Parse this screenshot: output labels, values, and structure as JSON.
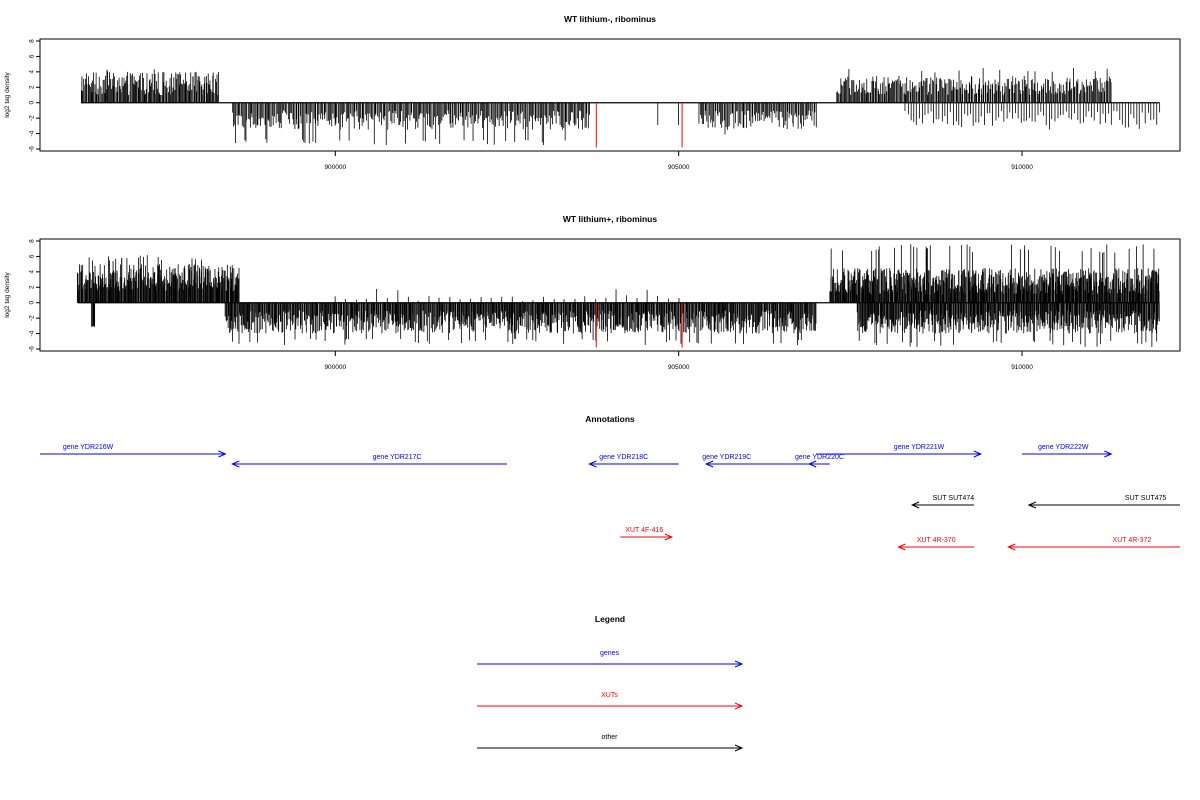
{
  "chart_data": [
    {
      "type": "bar",
      "title": "WT lithium-, ribominus",
      "ylabel": "log2 tag density",
      "xlabel": "",
      "ylim": [
        -6,
        8
      ],
      "yticks": [
        8,
        6,
        4,
        2,
        0,
        -2,
        -4,
        -6
      ],
      "xticks": [
        900000,
        905000,
        910000
      ],
      "xtick_labels": [
        "900000",
        "905000",
        "910000"
      ],
      "xrange": [
        895700,
        912300
      ],
      "colors": {
        "signal": "#000000",
        "marker": "#ff0000"
      },
      "segments": [
        {
          "strand": "+",
          "start": 896300,
          "end": 898300,
          "typical": [
            1,
            4
          ],
          "max": 4.6,
          "density": 0.6
        },
        {
          "strand": "-",
          "start": 898500,
          "end": 903700,
          "typical": [
            -1,
            -3.5
          ],
          "min": -5.5,
          "density": 0.45
        },
        {
          "strand": "-",
          "start": 904700,
          "end": 905000,
          "typical": [
            -2,
            -3
          ],
          "min": -3,
          "density": 0.05
        },
        {
          "strand": "-",
          "start": 905300,
          "end": 907000,
          "typical": [
            -1,
            -3.5
          ],
          "min": -4.5,
          "density": 0.45
        },
        {
          "strand": "+",
          "start": 907300,
          "end": 911300,
          "typical": [
            1,
            3.5
          ],
          "max": 4.5,
          "density": 0.5
        },
        {
          "strand": "-",
          "start": 908300,
          "end": 912000,
          "typical": [
            -1,
            -3
          ],
          "min": -3.5,
          "density": 0.18
        }
      ],
      "markers": [
        {
          "x": 903800,
          "y": -5.8
        },
        {
          "x": 905050,
          "y": -5.8
        }
      ]
    },
    {
      "type": "bar",
      "title": "WT lithium+, ribominus",
      "ylabel": "log2 tag density",
      "xlabel": "",
      "ylim": [
        -6,
        8
      ],
      "yticks": [
        8,
        6,
        4,
        2,
        0,
        -2,
        -4,
        -6
      ],
      "xticks": [
        900000,
        905000,
        910000
      ],
      "xtick_labels": [
        "900000",
        "905000",
        "910000"
      ],
      "xrange": [
        895700,
        912300
      ],
      "colors": {
        "signal": "#000000",
        "marker": "#ff0000"
      },
      "segments": [
        {
          "strand": "+",
          "start": 896250,
          "end": 898600,
          "typical": [
            1.5,
            5
          ],
          "max": 6.2,
          "density": 0.95
        },
        {
          "strand": "-",
          "start": 898400,
          "end": 907000,
          "typical": [
            -1,
            -4
          ],
          "min": -5.5,
          "density": 0.75
        },
        {
          "strand": "+",
          "start": 900000,
          "end": 905000,
          "typical": [
            0.2,
            1
          ],
          "max": 1.8,
          "density": 0.05
        },
        {
          "strand": "+",
          "start": 907200,
          "end": 912000,
          "typical": [
            1,
            4.5
          ],
          "max": 7.6,
          "density": 0.95
        },
        {
          "strand": "-",
          "start": 907600,
          "end": 912000,
          "typical": [
            -1,
            -4
          ],
          "min": -5.8,
          "density": 0.8
        },
        {
          "strand": "-",
          "start": 896450,
          "end": 896500,
          "typical": [
            -3,
            -3.2
          ],
          "min": -3.2,
          "density": 1
        }
      ],
      "markers": [
        {
          "x": 903800,
          "y": -5.8
        },
        {
          "x": 905050,
          "y": -5.8
        }
      ]
    }
  ],
  "annotations": {
    "title": "Annotations",
    "items": [
      {
        "label": "gene YDR216W",
        "start": 895700,
        "end": 898400,
        "dir": "right",
        "row": 0,
        "color": "#0000ff",
        "label_at": 896400
      },
      {
        "label": "gene YDR217C",
        "start": 898500,
        "end": 902500,
        "dir": "left",
        "row": 1,
        "color": "#0000ff",
        "label_at": 900900
      },
      {
        "label": "gene YDR218C",
        "start": 903700,
        "end": 905000,
        "dir": "left",
        "row": 1,
        "color": "#0000ff",
        "label_at": 904200
      },
      {
        "label": "gene YDR219C",
        "start": 905400,
        "end": 907000,
        "dir": "left",
        "row": 1,
        "color": "#0000ff",
        "label_at": 905700
      },
      {
        "label": "gene YDR220C",
        "start": 906900,
        "end": 907200,
        "dir": "left",
        "row": 1,
        "color": "#0000ff",
        "label_at": 907050
      },
      {
        "label": "gene YDR221W",
        "start": 907000,
        "end": 909400,
        "dir": "right",
        "row": 0,
        "color": "#0000ff",
        "label_at": 908500
      },
      {
        "label": "gene YDR222W",
        "start": 910000,
        "end": 911300,
        "dir": "right",
        "row": 0,
        "color": "#0000ff",
        "label_at": 910600
      },
      {
        "label": "SUT SUT474",
        "start": 908400,
        "end": 909300,
        "dir": "left",
        "row": 3,
        "color": "#000000",
        "label_at": 909000
      },
      {
        "label": "SUT SUT475",
        "start": 910100,
        "end": 912300,
        "dir": "left",
        "row": 3,
        "color": "#000000",
        "label_at": 911800
      },
      {
        "label": "XUT 4F-416",
        "start": 904150,
        "end": 904900,
        "dir": "right",
        "row": 5,
        "color": "#ff0000",
        "label_at": 904500
      },
      {
        "label": "XUT 4R-370",
        "start": 908200,
        "end": 909300,
        "dir": "left",
        "row": 6,
        "color": "#ff0000",
        "label_at": 908750
      },
      {
        "label": "XUT 4R-372",
        "start": 909800,
        "end": 912300,
        "dir": "left",
        "row": 6,
        "color": "#ff0000",
        "label_at": 911600
      }
    ]
  },
  "legend": {
    "title": "Legend",
    "items": [
      {
        "label": "genes",
        "color": "#0000ff"
      },
      {
        "label": "XUTs",
        "color": "#ff0000"
      },
      {
        "label": "other",
        "color": "#000000"
      }
    ]
  }
}
